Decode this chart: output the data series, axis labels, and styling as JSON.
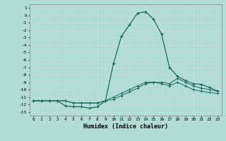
{
  "xlabel": "Humidex (Indice chaleur)",
  "background_color": "#b2ddd4",
  "grid_color": "#c0ddd8",
  "line_color": "#1a6b5a",
  "xlim": [
    -0.5,
    23.5
  ],
  "ylim": [
    -13.5,
    1.5
  ],
  "yticks": [
    1,
    0,
    -1,
    -2,
    -3,
    -4,
    -5,
    -6,
    -7,
    -8,
    -9,
    -10,
    -11,
    -12,
    -13
  ],
  "xticks": [
    0,
    1,
    2,
    3,
    4,
    5,
    6,
    7,
    8,
    9,
    10,
    11,
    12,
    13,
    14,
    15,
    16,
    17,
    18,
    19,
    20,
    21,
    22,
    23
  ],
  "series1_x": [
    0,
    1,
    2,
    3,
    4,
    5,
    6,
    7,
    8,
    9,
    10,
    11,
    12,
    13,
    14,
    15,
    16,
    17,
    18,
    19,
    20,
    21,
    22,
    23
  ],
  "series1_y": [
    -11.5,
    -11.5,
    -11.5,
    -11.5,
    -12.2,
    -12.3,
    -12.3,
    -12.5,
    -12.3,
    -11.5,
    -6.5,
    -2.8,
    -1.3,
    0.3,
    0.5,
    -0.5,
    -2.5,
    -7.0,
    -8.2,
    -8.8,
    -9.2,
    -9.3,
    -9.7,
    -10.2
  ],
  "series2_x": [
    0,
    1,
    2,
    3,
    4,
    5,
    6,
    7,
    8,
    9,
    10,
    11,
    12,
    13,
    14,
    15,
    16,
    17,
    18,
    19,
    20,
    21,
    22,
    23
  ],
  "series2_y": [
    -11.5,
    -11.5,
    -11.5,
    -11.5,
    -11.5,
    -11.8,
    -11.8,
    -11.8,
    -11.8,
    -11.5,
    -11.3,
    -10.8,
    -10.3,
    -9.8,
    -9.2,
    -9.0,
    -9.0,
    -9.2,
    -8.5,
    -9.0,
    -9.5,
    -9.8,
    -10.0,
    -10.2
  ],
  "series3_x": [
    0,
    1,
    2,
    3,
    4,
    5,
    6,
    7,
    8,
    9,
    10,
    11,
    12,
    13,
    14,
    15,
    16,
    17,
    18,
    19,
    20,
    21,
    22,
    23
  ],
  "series3_y": [
    -11.5,
    -11.5,
    -11.5,
    -11.5,
    -11.5,
    -11.8,
    -11.8,
    -11.8,
    -11.8,
    -11.5,
    -11.0,
    -10.5,
    -10.0,
    -9.5,
    -9.0,
    -9.0,
    -9.2,
    -9.5,
    -9.0,
    -9.5,
    -10.0,
    -10.2,
    -10.4,
    -10.5
  ]
}
